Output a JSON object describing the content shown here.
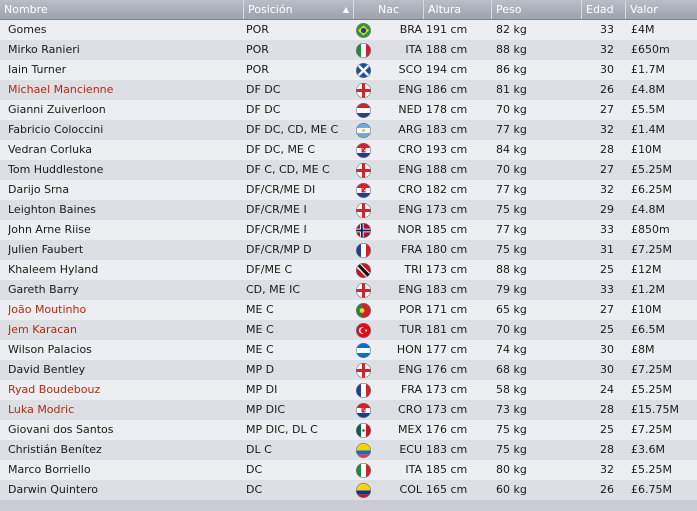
{
  "columns": {
    "nombre": "Nombre",
    "posicion": "Posición",
    "nac": "Nac",
    "altura": "Altura",
    "peso": "Peso",
    "edad": "Edad",
    "valor": "Valor"
  },
  "players": [
    {
      "name": "Gomes",
      "pos": "POR",
      "flag": "BRA",
      "nac": "BRA",
      "altura": "191 cm",
      "peso": "82 kg",
      "edad": "33",
      "valor": "£4M",
      "highlight": false
    },
    {
      "name": "Mirko Ranieri",
      "pos": "POR",
      "flag": "ITA",
      "nac": "ITA",
      "altura": "188 cm",
      "peso": "88 kg",
      "edad": "32",
      "valor": "£650m",
      "highlight": false
    },
    {
      "name": "Iain Turner",
      "pos": "POR",
      "flag": "SCO",
      "nac": "SCO",
      "altura": "194 cm",
      "peso": "86 kg",
      "edad": "30",
      "valor": "£1.7M",
      "highlight": false
    },
    {
      "name": "Michael Mancienne",
      "pos": "DF DC",
      "flag": "ENG",
      "nac": "ENG",
      "altura": "186 cm",
      "peso": "81 kg",
      "edad": "26",
      "valor": "£4.8M",
      "highlight": true
    },
    {
      "name": "Gianni Zuiverloon",
      "pos": "DF DC",
      "flag": "NED",
      "nac": "NED",
      "altura": "178 cm",
      "peso": "70 kg",
      "edad": "27",
      "valor": "£5.5M",
      "highlight": false
    },
    {
      "name": "Fabricio Coloccini",
      "pos": "DF DC, CD, ME C",
      "flag": "ARG",
      "nac": "ARG",
      "altura": "183 cm",
      "peso": "77 kg",
      "edad": "32",
      "valor": "£1.4M",
      "highlight": false
    },
    {
      "name": "Vedran Corluka",
      "pos": "DF DC, ME C",
      "flag": "CRO",
      "nac": "CRO",
      "altura": "193 cm",
      "peso": "84 kg",
      "edad": "28",
      "valor": "£10M",
      "highlight": false
    },
    {
      "name": "Tom Huddlestone",
      "pos": "DF C, CD, ME C",
      "flag": "ENG",
      "nac": "ENG",
      "altura": "188 cm",
      "peso": "70 kg",
      "edad": "27",
      "valor": "£5.25M",
      "highlight": false
    },
    {
      "name": "Darijo Srna",
      "pos": "DF/CR/ME DI",
      "flag": "CRO",
      "nac": "CRO",
      "altura": "182 cm",
      "peso": "77 kg",
      "edad": "32",
      "valor": "£6.25M",
      "highlight": false
    },
    {
      "name": "Leighton Baines",
      "pos": "DF/CR/ME I",
      "flag": "ENG",
      "nac": "ENG",
      "altura": "173 cm",
      "peso": "75 kg",
      "edad": "29",
      "valor": "£4.8M",
      "highlight": false
    },
    {
      "name": "John Arne Riise",
      "pos": "DF/CR/ME I",
      "flag": "NOR",
      "nac": "NOR",
      "altura": "185 cm",
      "peso": "77 kg",
      "edad": "33",
      "valor": "£850m",
      "highlight": false
    },
    {
      "name": "Julien Faubert",
      "pos": "DF/CR/MP D",
      "flag": "FRA",
      "nac": "FRA",
      "altura": "180 cm",
      "peso": "75 kg",
      "edad": "31",
      "valor": "£7.25M",
      "highlight": false
    },
    {
      "name": "Khaleem Hyland",
      "pos": "DF/ME C",
      "flag": "TRI",
      "nac": "TRI",
      "altura": "173 cm",
      "peso": "88 kg",
      "edad": "25",
      "valor": "£12M",
      "highlight": false
    },
    {
      "name": "Gareth Barry",
      "pos": "CD, ME IC",
      "flag": "ENG",
      "nac": "ENG",
      "altura": "183 cm",
      "peso": "79 kg",
      "edad": "33",
      "valor": "£1.2M",
      "highlight": false
    },
    {
      "name": "João Moutinho",
      "pos": "ME C",
      "flag": "POR",
      "nac": "POR",
      "altura": "171 cm",
      "peso": "65 kg",
      "edad": "27",
      "valor": "£10M",
      "highlight": true
    },
    {
      "name": "Jem Karacan",
      "pos": "ME C",
      "flag": "TUR",
      "nac": "TUR",
      "altura": "181 cm",
      "peso": "70 kg",
      "edad": "25",
      "valor": "£6.5M",
      "highlight": true
    },
    {
      "name": "Wilson Palacios",
      "pos": "ME C",
      "flag": "HON",
      "nac": "HON",
      "altura": "177 cm",
      "peso": "74 kg",
      "edad": "30",
      "valor": "£8M",
      "highlight": false
    },
    {
      "name": "David Bentley",
      "pos": "MP D",
      "flag": "ENG",
      "nac": "ENG",
      "altura": "176 cm",
      "peso": "68 kg",
      "edad": "30",
      "valor": "£7.25M",
      "highlight": false
    },
    {
      "name": "Ryad Boudebouz",
      "pos": "MP DI",
      "flag": "FRA",
      "nac": "FRA",
      "altura": "173 cm",
      "peso": "58 kg",
      "edad": "24",
      "valor": "£5.25M",
      "highlight": true
    },
    {
      "name": "Luka Modric",
      "pos": "MP DIC",
      "flag": "CRO",
      "nac": "CRO",
      "altura": "173 cm",
      "peso": "73 kg",
      "edad": "28",
      "valor": "£15.75M",
      "highlight": true
    },
    {
      "name": "Giovani dos Santos",
      "pos": "MP DIC, DL C",
      "flag": "MEX",
      "nac": "MEX",
      "altura": "176 cm",
      "peso": "75 kg",
      "edad": "25",
      "valor": "£7.25M",
      "highlight": false
    },
    {
      "name": "Christián Benítez",
      "pos": "DL C",
      "flag": "ECU",
      "nac": "ECU",
      "altura": "183 cm",
      "peso": "75 kg",
      "edad": "28",
      "valor": "£3.6M",
      "highlight": false
    },
    {
      "name": "Marco Borriello",
      "pos": "DC",
      "flag": "ITA",
      "nac": "ITA",
      "altura": "185 cm",
      "peso": "80 kg",
      "edad": "32",
      "valor": "£5.25M",
      "highlight": false
    },
    {
      "name": "Darwin Quintero",
      "pos": "DC",
      "flag": "COL",
      "nac": "COL",
      "altura": "165 cm",
      "peso": "60 kg",
      "edad": "26",
      "valor": "£6.75M",
      "highlight": false
    }
  ],
  "colors": {
    "highlight_name": "#b52a12",
    "header_bg": "#a9aeb8",
    "row_light": "#eceef1",
    "row_dark": "#dcdfe4"
  }
}
